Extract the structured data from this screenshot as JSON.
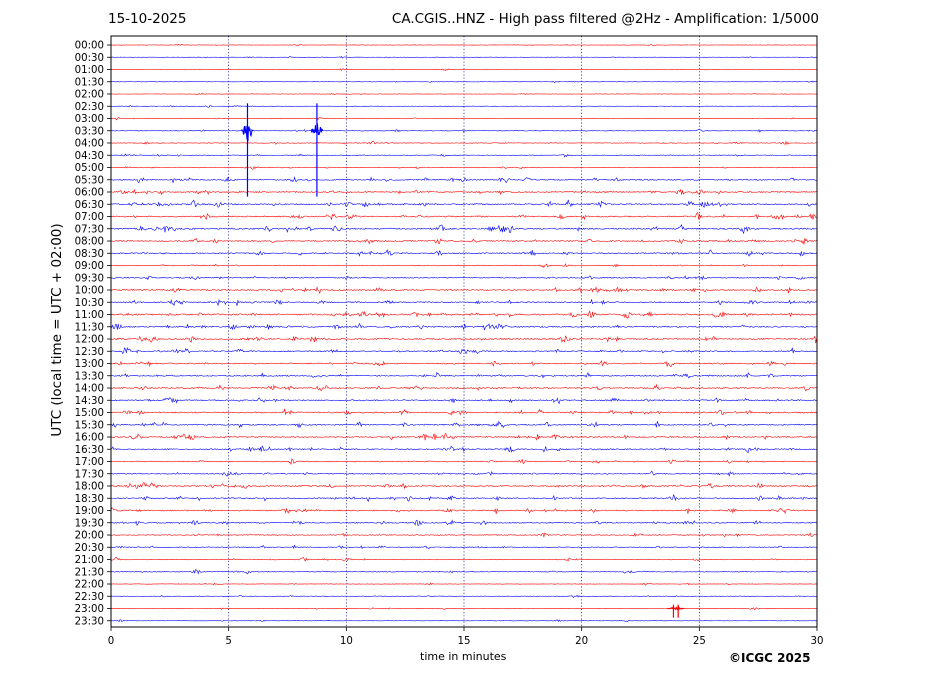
{
  "header": {
    "date": "15-10-2025",
    "title": "CA.CGIS..HNZ - High pass filtered @2Hz - Amplification: 1/5000"
  },
  "footer": {
    "copyright": "©ICGC 2025"
  },
  "chart_data": {
    "type": "line",
    "subtype": "helicorder",
    "xlabel": "time in minutes",
    "ylabel": "UTC (local time = UTC + 02:00)",
    "xlim": [
      0,
      30
    ],
    "x_ticks": [
      "0",
      "5",
      "10",
      "15",
      "20",
      "25",
      "30"
    ],
    "x_gridlines": [
      5,
      10,
      15,
      20,
      25
    ],
    "grid": "vertical dotted",
    "trace_colors": [
      "#ff0000",
      "#0000ff"
    ],
    "rows": [
      "00:00",
      "00:30",
      "01:00",
      "01:30",
      "02:00",
      "02:30",
      "03:00",
      "03:30",
      "04:00",
      "04:30",
      "05:00",
      "05:30",
      "06:00",
      "06:30",
      "07:00",
      "07:30",
      "08:00",
      "08:30",
      "09:00",
      "09:30",
      "10:00",
      "10:30",
      "11:00",
      "11:30",
      "12:00",
      "12:30",
      "13:00",
      "13:30",
      "14:00",
      "14:30",
      "15:00",
      "15:30",
      "16:00",
      "16:30",
      "17:00",
      "17:30",
      "18:00",
      "18:30",
      "19:00",
      "19:30",
      "20:00",
      "20:30",
      "21:00",
      "21:30",
      "22:00",
      "22:30",
      "23:00",
      "23:30"
    ],
    "row_noise_amplitude": [
      0.3,
      0.3,
      0.3,
      0.3,
      0.3,
      0.3,
      0.4,
      0.5,
      0.5,
      0.5,
      0.6,
      1.0,
      1.0,
      1.2,
      1.0,
      1.2,
      1.0,
      1.0,
      0.7,
      0.8,
      1.0,
      1.0,
      1.2,
      1.1,
      1.1,
      1.0,
      1.0,
      1.0,
      1.0,
      1.0,
      1.0,
      1.0,
      1.0,
      1.0,
      0.8,
      0.8,
      1.0,
      1.0,
      1.0,
      0.9,
      0.7,
      0.7,
      0.6,
      0.6,
      0.4,
      0.4,
      0.4,
      0.3
    ],
    "events": [
      {
        "time": "03:30",
        "minute": 5.8,
        "amplitude": 12,
        "extent_rows": 7
      },
      {
        "time": "03:30",
        "minute": 8.75,
        "amplitude": 12,
        "extent_rows": 7
      },
      {
        "time": "23:00",
        "minute": 23.9,
        "amplitude": 1.5,
        "extent_rows": 1
      },
      {
        "time": "23:00",
        "minute": 24.1,
        "amplitude": 1.5,
        "extent_rows": 1
      }
    ]
  }
}
